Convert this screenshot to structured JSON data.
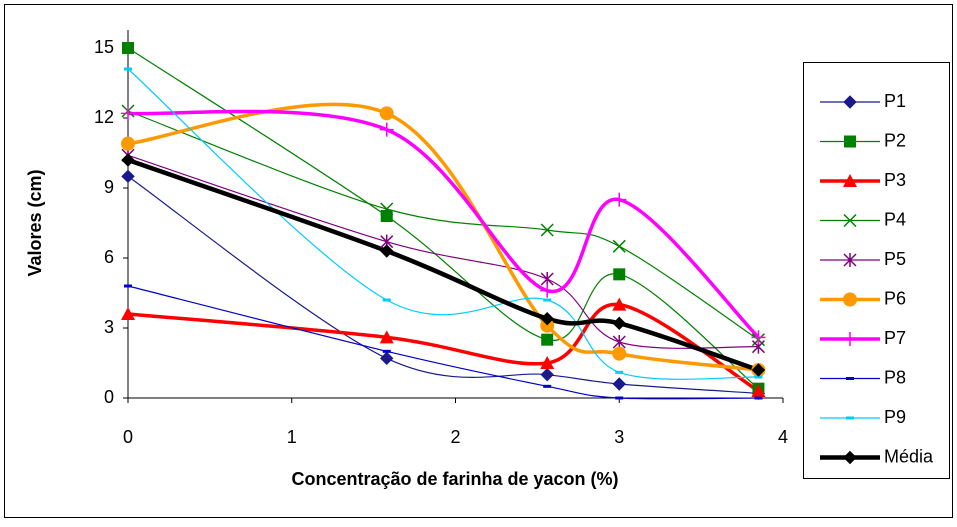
{
  "chart_data": {
    "type": "line",
    "x_label": "Concentração de farinha de yacon (%)",
    "y_label": "Valores (cm)",
    "x": [
      0,
      1.58,
      2.56,
      3,
      3.85
    ],
    "xlim": [
      0,
      4
    ],
    "xticks": [
      0,
      1,
      2,
      3,
      4
    ],
    "ylim": [
      0,
      15
    ],
    "yticks": [
      0,
      3,
      6,
      9,
      12,
      15
    ],
    "series": [
      {
        "name": "P1",
        "color": "#1a1a8c",
        "values": [
          9.5,
          1.7,
          1.0,
          0.6,
          0.2
        ]
      },
      {
        "name": "P2",
        "color": "#008000",
        "values": [
          15,
          7.8,
          2.5,
          5.3,
          0.4
        ]
      },
      {
        "name": "P3",
        "color": "#ff0000",
        "values": [
          3.6,
          2.6,
          1.5,
          4.0,
          0.3
        ]
      },
      {
        "name": "P4",
        "color": "#008000",
        "values": [
          12.3,
          8.1,
          7.2,
          6.5,
          2.5
        ]
      },
      {
        "name": "P5",
        "color": "#800080",
        "values": [
          10.4,
          6.7,
          5.1,
          2.4,
          2.2
        ]
      },
      {
        "name": "P6",
        "color": "#ff9900",
        "values": [
          10.9,
          12.2,
          3.1,
          1.9,
          1.2
        ]
      },
      {
        "name": "P7",
        "color": "#ff00ff",
        "values": [
          12.2,
          11.5,
          4.6,
          8.5,
          2.6
        ]
      },
      {
        "name": "P8",
        "color": "#0000cc",
        "values": [
          4.8,
          2.0,
          0.5,
          0.0,
          0.0
        ]
      },
      {
        "name": "P9",
        "color": "#00ccff",
        "values": [
          14.1,
          4.2,
          4.2,
          1.1,
          0.9
        ]
      },
      {
        "name": "Média",
        "color": "#000000",
        "values": [
          10.2,
          6.3,
          3.4,
          3.2,
          1.2
        ]
      }
    ]
  }
}
